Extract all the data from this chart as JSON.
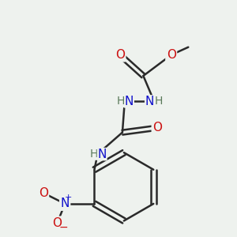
{
  "bg_color": "#eef2ee",
  "colors": {
    "C": "#2a2a2a",
    "H": "#5a7a5a",
    "N": "#1010cc",
    "O": "#cc1010",
    "bond": "#2a2a2a"
  },
  "figsize": [
    3.0,
    3.0
  ],
  "dpi": 100
}
